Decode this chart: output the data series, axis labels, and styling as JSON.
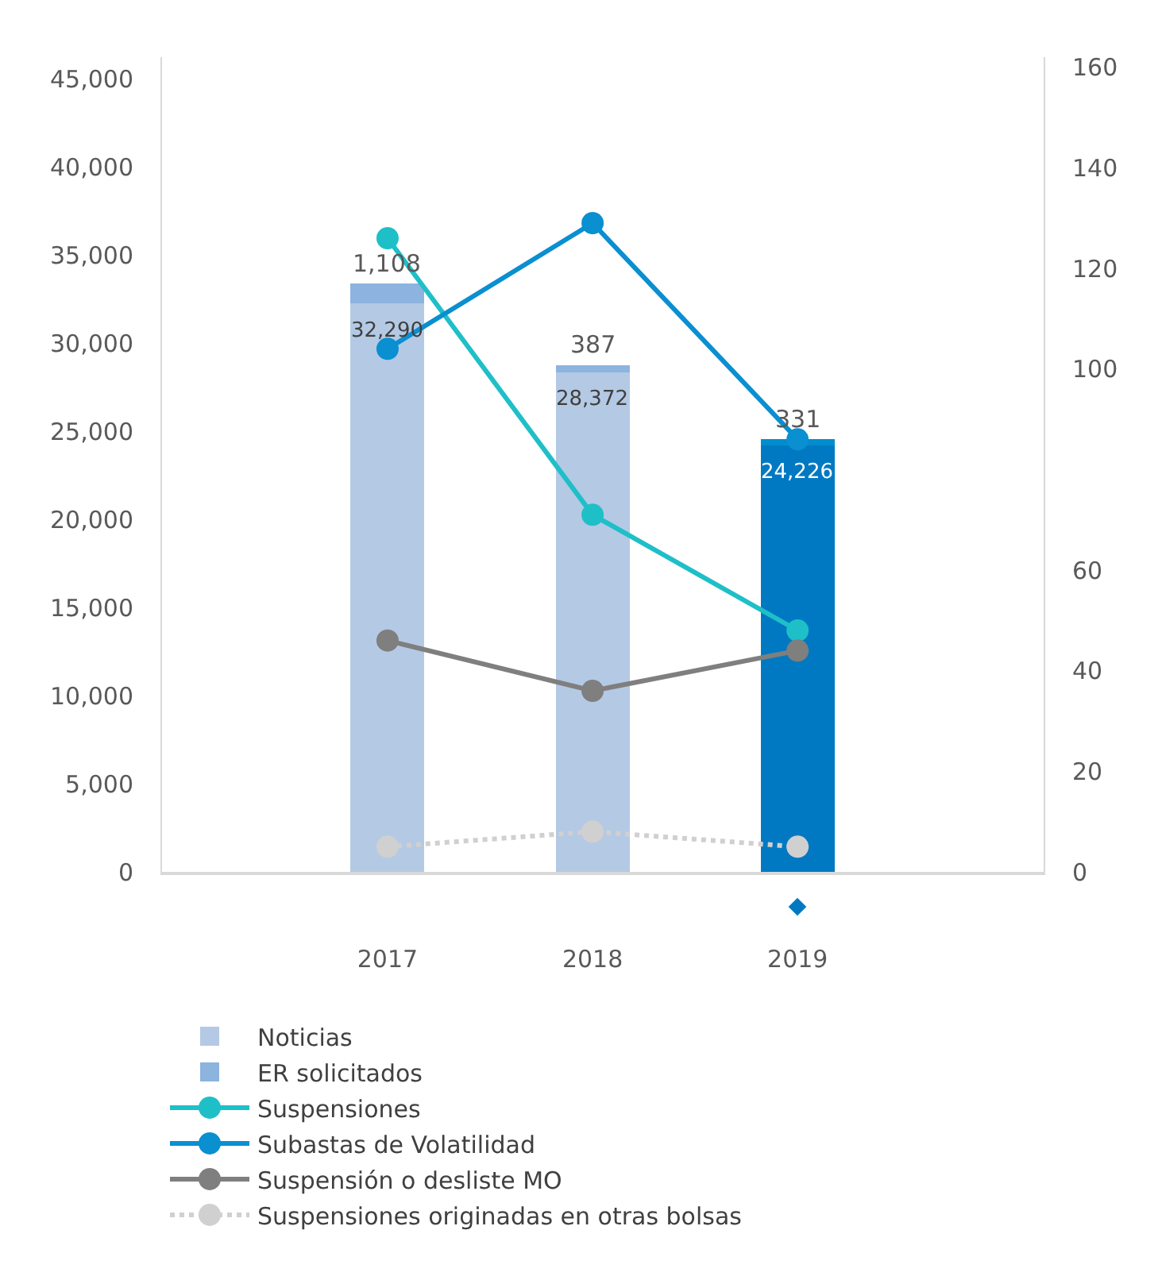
{
  "chart_data": {
    "type": "bar",
    "stacked": true,
    "categories": [
      "2017",
      "2018",
      "2019"
    ],
    "series": [
      {
        "name": "Noticias",
        "colors": [
          "#b4c9e4",
          "#b4c9e4",
          "#0079c2"
        ],
        "values": [
          32290,
          28372,
          24226
        ],
        "value_labels": [
          "32,290",
          "28,372",
          "24,226"
        ]
      },
      {
        "name": "ER solicitados",
        "colors": [
          "#8db3df",
          "#8db3df",
          "#008dd0"
        ],
        "values": [
          1108,
          387,
          331
        ],
        "value_labels": [
          "1,108",
          "387",
          "331"
        ]
      },
      {
        "name": "Suspensiones",
        "type": "line",
        "axis": "y2",
        "color": "#1fbfc8",
        "marker": "circle",
        "line_style": "solid",
        "values": [
          126,
          71,
          48
        ]
      },
      {
        "name": "Subastas de Volatilidad",
        "type": "line",
        "axis": "y2",
        "color": "#0a8fd1",
        "marker": "circle",
        "line_style": "solid",
        "values": [
          104,
          129,
          86
        ]
      },
      {
        "name": "Suspensión o desliste MO",
        "type": "line",
        "axis": "y2",
        "color": "#7f7f7f",
        "marker": "circle",
        "line_style": "solid",
        "values": [
          46,
          36,
          44
        ]
      },
      {
        "name": "Suspensiones originadas en otras bolsas",
        "type": "line",
        "axis": "y2",
        "color": "#d0d0d0",
        "marker": "circle",
        "line_style": "dotted",
        "values": [
          5,
          8,
          5
        ]
      }
    ],
    "ylim": [
      0,
      46250
    ],
    "yticks": [
      0,
      {
        "value": 5000,
        "label": "5,000"
      },
      {
        "value": 10000,
        "label": "10,000"
      },
      {
        "value": 15000,
        "label": "15,000"
      },
      {
        "value": 20000,
        "label": "20,000"
      },
      {
        "value": 25000,
        "label": "25,000"
      },
      {
        "value": 30000,
        "label": "30,000"
      },
      {
        "value": 35000,
        "label": "35,000"
      },
      {
        "value": 40000,
        "label": "40,000"
      },
      {
        "value": 45000,
        "label": "45,000"
      }
    ],
    "y2lim": [
      0,
      162
    ],
    "y2ticks": [
      0,
      20,
      40,
      60,
      100,
      120,
      140,
      160
    ],
    "grid": false,
    "legend": "bottom"
  }
}
